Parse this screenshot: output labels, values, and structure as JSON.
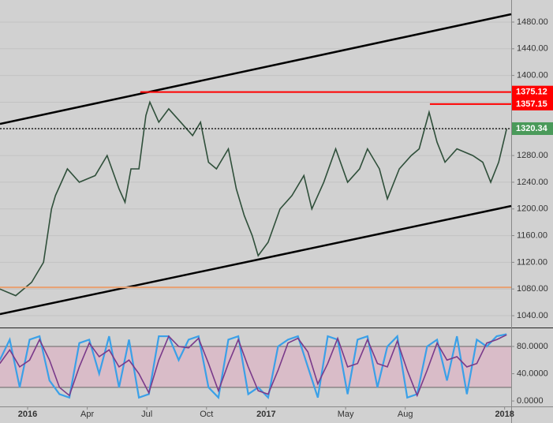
{
  "chart_data": [
    {
      "type": "line",
      "x": [
        -1.4,
        -0.6,
        0.2,
        0.8,
        1.2,
        1.4,
        2,
        2.6,
        3.4,
        4,
        4.6,
        4.9,
        5.2,
        5.6,
        5.95,
        6.15,
        6.6,
        7.1,
        7.7,
        8.3,
        8.7,
        9.1,
        9.5,
        10.1,
        10.5,
        10.9,
        11.3,
        11.6,
        12.1,
        12.7,
        13.3,
        13.9,
        14.3,
        14.9,
        15.5,
        16.1,
        16.7,
        17.1,
        17.7,
        18.1,
        18.7,
        19.3,
        19.7,
        20.2,
        20.6,
        21,
        21.6,
        22.4,
        22.9,
        23.3,
        23.7,
        24.1
      ],
      "series": [
        {
          "color": "#2f4f3a",
          "values": [
            1080,
            1070,
            1090,
            1120,
            1200,
            1220,
            1260,
            1240,
            1250,
            1280,
            1230,
            1210,
            1260,
            1260,
            1340,
            1360,
            1330,
            1350,
            1330,
            1310,
            1330,
            1270,
            1260,
            1290,
            1230,
            1190,
            1160,
            1130,
            1150,
            1200,
            1220,
            1250,
            1200,
            1240,
            1290,
            1240,
            1260,
            1290,
            1260,
            1215,
            1260,
            1280,
            1290,
            1345,
            1300,
            1270,
            1290,
            1280,
            1270,
            1240,
            1270,
            1320
          ]
        }
      ],
      "xlim": [
        -1.39,
        24.33
      ],
      "ylim": [
        1022.3,
        1513.1
      ],
      "yticks": [
        {
          "value": 1040,
          "label": "1040.00"
        },
        {
          "value": 1080,
          "label": "1080.00"
        },
        {
          "value": 1120,
          "label": "1120.00"
        },
        {
          "value": 1160,
          "label": "1160.00"
        },
        {
          "value": 1200,
          "label": "1200.00"
        },
        {
          "value": 1240,
          "label": "1240.00"
        },
        {
          "value": 1280,
          "label": "1280.00"
        },
        {
          "value": 1320,
          "label": "1320.00"
        },
        {
          "value": 1360,
          "label": "1360.00"
        },
        {
          "value": 1400,
          "label": "1400.00"
        },
        {
          "value": 1440,
          "label": "1440.00"
        },
        {
          "value": 1480,
          "label": "1480.00"
        }
      ],
      "grid": true,
      "trend_lines": [
        {
          "x": [
            -1.39,
            24.33
          ],
          "y": [
            1327.4,
            1491.8
          ],
          "color": "#000000"
        },
        {
          "x": [
            -1.39,
            24.33
          ],
          "y": [
            1042.3,
            1204.4
          ],
          "color": "#000000"
        }
      ],
      "levels": [
        {
          "value": 1375.12,
          "x_start": 5.67,
          "color": "#ff0000",
          "style": "solid"
        },
        {
          "value": 1357.15,
          "x_start": 20.24,
          "color": "#ff0000",
          "style": "solid"
        },
        {
          "value": 1320.34,
          "x_start": -1.39,
          "color": "#000000",
          "style": "dotted",
          "label_color": "#4a9a5a"
        },
        {
          "value": 1082.5,
          "x_start": -1.39,
          "color": "#e8a070",
          "style": "solid",
          "hide_label": true
        }
      ]
    },
    {
      "type": "line",
      "x": [
        -1.4,
        -0.9,
        -0.4,
        0.1,
        0.6,
        1.1,
        1.6,
        2.1,
        2.6,
        3.1,
        3.6,
        4.1,
        4.6,
        5.1,
        5.6,
        6.1,
        6.6,
        7.1,
        7.6,
        8.1,
        8.6,
        9.1,
        9.6,
        10.1,
        10.6,
        11.1,
        11.6,
        12.1,
        12.6,
        13.1,
        13.6,
        14.1,
        14.6,
        15.1,
        15.6,
        16.1,
        16.6,
        17.1,
        17.6,
        18.1,
        18.6,
        19.1,
        19.6,
        20.1,
        20.6,
        21.1,
        21.6,
        22.1,
        22.6,
        23.1,
        23.6,
        24.1
      ],
      "series": [
        {
          "color": "#3aa0e8",
          "values": [
            60,
            90,
            20,
            90,
            95,
            30,
            10,
            5,
            85,
            90,
            40,
            95,
            20,
            90,
            5,
            10,
            95,
            95,
            60,
            90,
            95,
            20,
            5,
            90,
            95,
            10,
            20,
            5,
            80,
            90,
            95,
            50,
            5,
            95,
            90,
            10,
            90,
            95,
            20,
            80,
            95,
            5,
            10,
            80,
            90,
            30,
            95,
            10,
            90,
            80,
            95,
            98
          ]
        },
        {
          "color": "#7a3a8a",
          "values": [
            55,
            75,
            50,
            60,
            90,
            60,
            20,
            8,
            50,
            85,
            65,
            75,
            50,
            60,
            40,
            12,
            60,
            95,
            80,
            78,
            92,
            55,
            15,
            55,
            90,
            50,
            15,
            10,
            45,
            85,
            92,
            72,
            25,
            55,
            92,
            50,
            55,
            90,
            55,
            50,
            88,
            45,
            8,
            45,
            85,
            60,
            65,
            50,
            55,
            85,
            90,
            97
          ]
        }
      ],
      "xlim": [
        -1.39,
        24.33
      ],
      "ylim": [
        -8,
        107.8
      ],
      "yticks": [
        {
          "value": 0,
          "label": "0.0000"
        },
        {
          "value": 40,
          "label": "40.0000"
        },
        {
          "value": 80,
          "label": "80.0000"
        }
      ],
      "band": [
        20,
        80
      ],
      "xticks": [
        {
          "value": 0,
          "label": "2016"
        },
        {
          "value": 3,
          "label": "Apr"
        },
        {
          "value": 6,
          "label": "Jul"
        },
        {
          "value": 9,
          "label": "Oct"
        },
        {
          "value": 12,
          "label": "2017"
        },
        {
          "value": 16,
          "label": "May"
        },
        {
          "value": 19,
          "label": "Aug"
        },
        {
          "value": 24,
          "label": "2018"
        }
      ]
    }
  ]
}
